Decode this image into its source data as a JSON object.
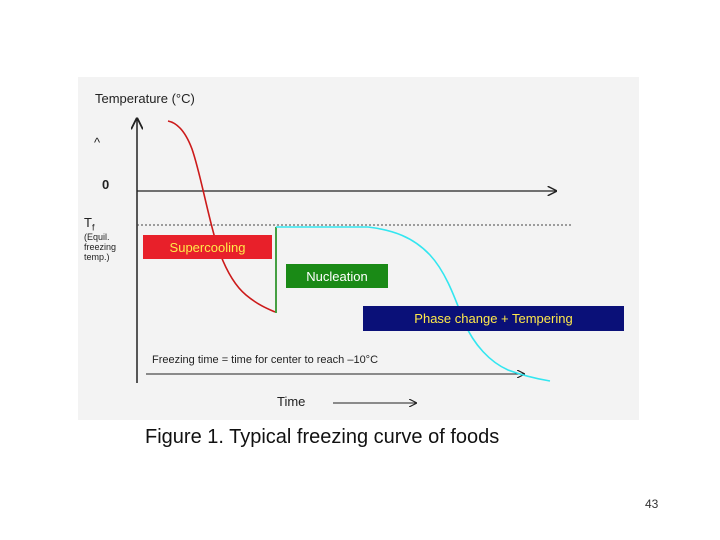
{
  "diagram": {
    "y_axis_label": "Temperature (°C)",
    "caret_mark": "^",
    "zero_label": "0",
    "tf_label": "T",
    "tf_subscript": "f",
    "tf_note_lines": [
      "(Equil.",
      "freezing",
      "temp.)"
    ],
    "supercooling_label": "Supercooling",
    "nucleation_label": "Nucleation",
    "phase_change_label": "Phase change + Tempering",
    "freezing_time_note": "Freezing time = time for center to reach –10°C",
    "time_label": "Time",
    "colors": {
      "cooling_curve": "#cc1a1a",
      "nucleation_jump": "#1a8a16",
      "freezing_curve": "#33e6f0",
      "supercooling_box": "#e8202a",
      "nucleation_box": "#1a8a16",
      "phase_box": "#0a1078",
      "box_text_yellow": "#ffe94a"
    }
  },
  "caption": "Figure 1.  Typical freezing curve of foods",
  "page_number": "43"
}
